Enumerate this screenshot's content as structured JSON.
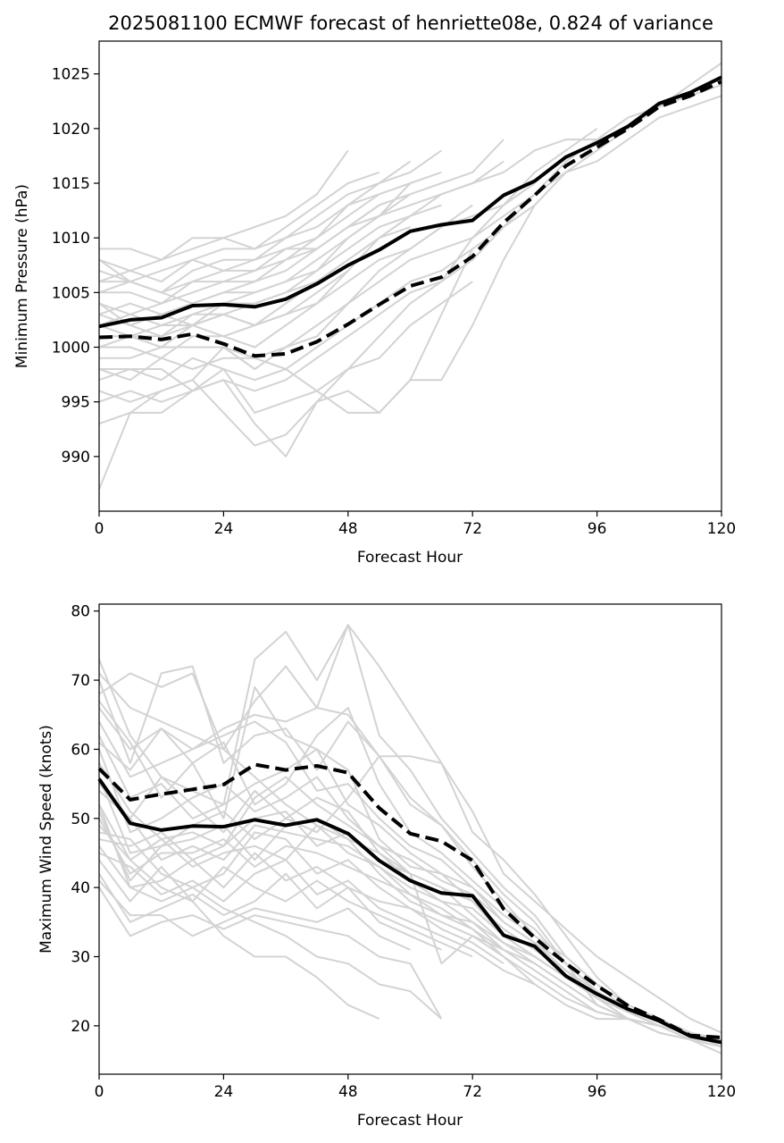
{
  "figure": {
    "title": "2025081100 ECMWF forecast of henriette08e, 0.824 of variance"
  },
  "colors": {
    "ensemble_member": "#d3d3d3",
    "main_line": "#000000",
    "background": "#ffffff"
  },
  "chart_data": [
    {
      "type": "line",
      "title": "2025081100 ECMWF forecast of henriette08e, 0.824 of variance",
      "xlabel": "Forecast Hour",
      "ylabel": "Minimum Pressure (hPa)",
      "xlim": [
        0,
        120
      ],
      "ylim": [
        985,
        1028
      ],
      "xticks": [
        0,
        24,
        48,
        72,
        96,
        120
      ],
      "yticks": [
        990,
        995,
        1000,
        1005,
        1010,
        1015,
        1020,
        1025
      ],
      "grid": false,
      "x": [
        0,
        6,
        12,
        18,
        24,
        30,
        36,
        42,
        48,
        54,
        60,
        66,
        72,
        78,
        84,
        90,
        96,
        102,
        108,
        114,
        120
      ],
      "series": [
        {
          "style": "solid",
          "values": [
            1001.9,
            1002.5,
            1002.7,
            1003.8,
            1003.9,
            1003.7,
            1004.4,
            1005.8,
            1007.5,
            1008.9,
            1010.6,
            1011.2,
            1011.6,
            1013.9,
            1015.2,
            1017.4,
            1018.7,
            1020.2,
            1022.3,
            1023.3,
            1024.7
          ]
        },
        {
          "style": "dashed",
          "values": [
            1000.9,
            1001.0,
            1000.7,
            1001.2,
            1000.3,
            999.2,
            999.4,
            1000.5,
            1002.1,
            1003.9,
            1005.6,
            1006.4,
            1008.3,
            1011.4,
            1013.9,
            1016.6,
            1018.3,
            1020.0,
            1022.0,
            1023.0,
            1024.3
          ]
        }
      ],
      "members": [
        [
          1009,
          1009,
          1008,
          1010,
          1010,
          1011,
          1012,
          1014,
          1018
        ],
        [
          1008,
          1007,
          1008,
          1009,
          1010,
          1009,
          1011,
          1013,
          1015,
          1016
        ],
        [
          1007,
          1006,
          1007,
          1008,
          1009,
          1009,
          1010,
          1012,
          1014,
          1015,
          1017
        ],
        [
          1006,
          1006,
          1005,
          1007,
          1008,
          1008,
          1010,
          1011,
          1013,
          1015,
          1016,
          1018
        ],
        [
          1005,
          1005,
          1004,
          1006,
          1007,
          1007,
          1009,
          1010,
          1012,
          1014,
          1015,
          1016
        ],
        [
          1004,
          1003,
          1004,
          1005,
          1006,
          1006,
          1007,
          1009,
          1011,
          1013,
          1014,
          1015,
          1016,
          1019
        ],
        [
          1003,
          1004,
          1003,
          1004,
          1005,
          1005,
          1006,
          1008,
          1010,
          1012,
          1013,
          1014,
          1015,
          1017
        ],
        [
          1002,
          1003,
          1002,
          1003,
          1004,
          1004,
          1005,
          1007,
          1009,
          1011,
          1012,
          1013
        ],
        [
          1001,
          1001,
          1002,
          1002,
          1003,
          1002,
          1004,
          1006,
          1008,
          1010,
          1011
        ],
        [
          1000,
          1000,
          999,
          1001,
          1001,
          1000,
          1002,
          1004,
          1006,
          1008,
          1009,
          1011,
          1013
        ],
        [
          999,
          999,
          1000,
          1000,
          1000,
          998,
          1000,
          1002,
          1004,
          1006,
          1008,
          1009,
          1010,
          1012,
          1014,
          1016,
          1018,
          1020,
          1022,
          1024,
          1026
        ],
        [
          998,
          998,
          997,
          999,
          998,
          997,
          998,
          1000,
          1002,
          1004,
          1006,
          1007,
          1009,
          1011,
          1013,
          1016,
          1017,
          1019,
          1021,
          1022,
          1023
        ],
        [
          997,
          998,
          998,
          996,
          997,
          996,
          997,
          999,
          1001,
          1003,
          1005,
          1006,
          1008,
          1011,
          1014,
          1017,
          1019,
          1021,
          1022,
          1023,
          1024
        ],
        [
          996,
          995,
          996,
          997,
          994,
          991,
          992,
          995,
          998,
          1001,
          1004,
          1006,
          1010,
          1013,
          1016,
          1018,
          1020
        ],
        [
          995,
          996,
          995,
          996,
          998,
          994,
          995,
          996,
          998,
          999,
          1002,
          1004,
          1006
        ],
        [
          993,
          994,
          994,
          996,
          997,
          993,
          990,
          995,
          996,
          994,
          997,
          997,
          1002,
          1008,
          1013
        ],
        [
          987,
          994,
          996,
          997,
          1000,
          999,
          998,
          996,
          994,
          994,
          997,
          1003,
          1009
        ],
        [
          1006,
          1007,
          1006,
          1008,
          1007,
          1008,
          1009,
          1009,
          1011,
          1013
        ],
        [
          1004,
          1002,
          1003,
          1002,
          1004,
          1005,
          1006,
          1007,
          1010,
          1012,
          1015
        ],
        [
          1003,
          1002,
          1001,
          1003,
          1003,
          1002,
          1003,
          1005,
          1007
        ],
        [
          1008,
          1006,
          1005,
          1004,
          1005,
          1006,
          1008,
          1009,
          1011,
          1012,
          1014
        ],
        [
          1002,
          1001,
          1000,
          1002,
          1003,
          1004,
          1005,
          1006,
          1008,
          1010,
          1012,
          1014,
          1015,
          1016,
          1018,
          1019,
          1019
        ],
        [
          998,
          997,
          999,
          998,
          999,
          999,
          1000,
          1001,
          1004,
          1007,
          1009,
          1011,
          1012,
          1013,
          1015
        ],
        [
          1005,
          1006,
          1005,
          1006,
          1006,
          1007,
          1008,
          1010,
          1013,
          1014
        ],
        [
          1000,
          1001,
          1001,
          1002,
          1001,
          1002,
          1003,
          1004,
          1007,
          1010,
          1012
        ]
      ]
    },
    {
      "type": "line",
      "title": "",
      "xlabel": "Forecast Hour",
      "ylabel": "Maximum Wind Speed (knots)",
      "xlim": [
        0,
        120
      ],
      "ylim": [
        13,
        81
      ],
      "xticks": [
        0,
        24,
        48,
        72,
        96,
        120
      ],
      "yticks": [
        20,
        30,
        40,
        50,
        60,
        70,
        80
      ],
      "grid": false,
      "x": [
        0,
        6,
        12,
        18,
        24,
        30,
        36,
        42,
        48,
        54,
        60,
        66,
        72,
        78,
        84,
        90,
        96,
        102,
        108,
        114,
        120
      ],
      "series": [
        {
          "style": "solid",
          "values": [
            55.7,
            49.3,
            48.3,
            48.9,
            48.8,
            49.8,
            49.0,
            49.8,
            47.8,
            43.9,
            41.0,
            39.2,
            38.8,
            33.1,
            31.5,
            27.2,
            24.6,
            22.4,
            20.7,
            18.5,
            17.6
          ]
        },
        {
          "style": "dashed",
          "values": [
            57.2,
            52.7,
            53.5,
            54.2,
            54.9,
            57.8,
            57.0,
            57.6,
            56.6,
            51.5,
            47.8,
            46.7,
            43.9,
            36.9,
            32.7,
            29.0,
            25.8,
            22.9,
            20.9,
            18.6,
            18.3
          ]
        }
      ],
      "members": [
        [
          73,
          62,
          56,
          54,
          52,
          73,
          77,
          70,
          78,
          72,
          65,
          58,
          48,
          44,
          39,
          33,
          27,
          23,
          21,
          19,
          17
        ],
        [
          71,
          66,
          64,
          62,
          60,
          67,
          72,
          66,
          78,
          62,
          57,
          50,
          45,
          40,
          36,
          30,
          26,
          22,
          20,
          18,
          16
        ],
        [
          70,
          58,
          71,
          72,
          58,
          62,
          63,
          57,
          64,
          59,
          53,
          49,
          44,
          39,
          35,
          29,
          25,
          22,
          20,
          18,
          17
        ],
        [
          68,
          71,
          69,
          71,
          60,
          56,
          52,
          49,
          47,
          45,
          42,
          40,
          38,
          34,
          31,
          28,
          24,
          21,
          19,
          18,
          17
        ],
        [
          66,
          60,
          63,
          58,
          50,
          69,
          62,
          60,
          57,
          47,
          43,
          42,
          38,
          33,
          30,
          27,
          24,
          22,
          20,
          19,
          18
        ],
        [
          64,
          56,
          58,
          60,
          62,
          64,
          61,
          54,
          55,
          50,
          46,
          44,
          40,
          36,
          33,
          30,
          26,
          23,
          21,
          19,
          18
        ],
        [
          62,
          53,
          55,
          50,
          52,
          55,
          57,
          60,
          52,
          49,
          45,
          42,
          40,
          35,
          32,
          28,
          25,
          22,
          20,
          19,
          18
        ],
        [
          60,
          48,
          50,
          53,
          55,
          51,
          53,
          56,
          50,
          46,
          44,
          41,
          39,
          35,
          32,
          29,
          25,
          22,
          20,
          19,
          18
        ],
        [
          58,
          51,
          47,
          48,
          46,
          53,
          56,
          52,
          49,
          46,
          42,
          40,
          36,
          32,
          29,
          26,
          23,
          21,
          19,
          18,
          17
        ],
        [
          56,
          45,
          46,
          49,
          51,
          47,
          50,
          53,
          51,
          45,
          41,
          38,
          35,
          31,
          28,
          25,
          22,
          21,
          20,
          18,
          17
        ],
        [
          54,
          50,
          44,
          46,
          44,
          49,
          48,
          47,
          46,
          43,
          40,
          38,
          37,
          33,
          30,
          27,
          24,
          22,
          20,
          19,
          18
        ],
        [
          52,
          44,
          47,
          43,
          45,
          46,
          44,
          49,
          45,
          43,
          39,
          37,
          34,
          31,
          29,
          26,
          23,
          21,
          20,
          19
        ],
        [
          50,
          42,
          45,
          45,
          47,
          43,
          46,
          45,
          43,
          41,
          39,
          36,
          35,
          32,
          30,
          27,
          24,
          22
        ],
        [
          48,
          47,
          42,
          40,
          42,
          48,
          47,
          42,
          44,
          40,
          37,
          35,
          33,
          31
        ],
        [
          46,
          40,
          41,
          44,
          40,
          45,
          41,
          43,
          40,
          38,
          37,
          34,
          32,
          29
        ],
        [
          45,
          43,
          39,
          41,
          38,
          42,
          44,
          39,
          41,
          37,
          35,
          33,
          31,
          28,
          26
        ],
        [
          44,
          38,
          43,
          38,
          43,
          40,
          38,
          41,
          38,
          36,
          34,
          32,
          30
        ],
        [
          42,
          35,
          37,
          39,
          36,
          38,
          42,
          37,
          40,
          35,
          33,
          31
        ],
        [
          41,
          36,
          36,
          33,
          35,
          37,
          36,
          35,
          37,
          33,
          31
        ],
        [
          40,
          33,
          35,
          36,
          34,
          36,
          35,
          34,
          33,
          30,
          29,
          21
        ],
        [
          49,
          44,
          40,
          38,
          33,
          30,
          30,
          27,
          23,
          21
        ],
        [
          52,
          40,
          38,
          40,
          37,
          35,
          33,
          30,
          29,
          26,
          25,
          21
        ],
        [
          61,
          57,
          63,
          60,
          63,
          65,
          64,
          66,
          65,
          59,
          52,
          49,
          43,
          38,
          33
        ],
        [
          67,
          61,
          53,
          58,
          61,
          52,
          55,
          62,
          66,
          55,
          48,
          45,
          41,
          37,
          34,
          29,
          23,
          21,
          20
        ],
        [
          55,
          50,
          56,
          52,
          48,
          54,
          50,
          48,
          53,
          59,
          59,
          58,
          51,
          42,
          38,
          34,
          30,
          27,
          24,
          21,
          19
        ],
        [
          47,
          46,
          48,
          44,
          46,
          50,
          51,
          46,
          48,
          44,
          42,
          29,
          33,
          30,
          27,
          24,
          22,
          21,
          20,
          19,
          18
        ],
        [
          51,
          41,
          46,
          47,
          49,
          44,
          49,
          50,
          47,
          42,
          38,
          36,
          34,
          30,
          26,
          23,
          21,
          21
        ]
      ]
    }
  ]
}
